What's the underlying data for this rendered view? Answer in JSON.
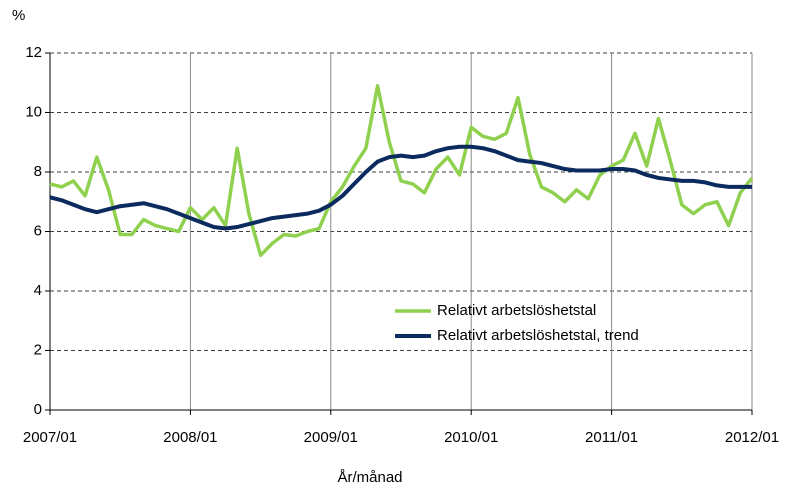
{
  "chart_data": {
    "type": "line",
    "y_unit_label": "%",
    "x_label": "År/månad",
    "categories": [
      "2007/01",
      null,
      null,
      null,
      null,
      null,
      null,
      null,
      null,
      null,
      null,
      null,
      "2008/01",
      null,
      null,
      null,
      null,
      null,
      null,
      null,
      null,
      null,
      null,
      null,
      "2009/01",
      null,
      null,
      null,
      null,
      null,
      null,
      null,
      null,
      null,
      null,
      null,
      "2010/01",
      null,
      null,
      null,
      null,
      null,
      null,
      null,
      null,
      null,
      null,
      null,
      "2011/01",
      null,
      null,
      null,
      null,
      null,
      null,
      null,
      null,
      null,
      null,
      null,
      "2012/01"
    ],
    "series": [
      {
        "name": "Relativt arbetslöshetstal",
        "color": "#8fd14f",
        "width": 3.5,
        "values": [
          7.6,
          7.5,
          7.7,
          7.2,
          8.5,
          7.4,
          5.9,
          5.9,
          6.4,
          6.2,
          6.1,
          6.0,
          6.8,
          6.4,
          6.8,
          6.2,
          8.8,
          6.6,
          5.2,
          5.6,
          5.9,
          5.85,
          6.0,
          6.1,
          7.0,
          7.5,
          8.2,
          8.8,
          10.9,
          9.0,
          7.7,
          7.6,
          7.3,
          8.1,
          8.5,
          7.9,
          9.5,
          9.2,
          9.1,
          9.3,
          10.5,
          8.6,
          7.5,
          7.3,
          7.0,
          7.4,
          7.1,
          7.9,
          8.2,
          8.4,
          9.3,
          8.2,
          9.8,
          8.4,
          6.9,
          6.6,
          6.9,
          7.0,
          6.2,
          7.3,
          7.8
        ]
      },
      {
        "name": "Relativt arbetslöshetstal, trend",
        "color": "#0b2a5e",
        "width": 4,
        "values": [
          7.15,
          7.05,
          6.9,
          6.75,
          6.65,
          6.75,
          6.85,
          6.9,
          6.95,
          6.85,
          6.75,
          6.6,
          6.45,
          6.3,
          6.15,
          6.1,
          6.15,
          6.25,
          6.35,
          6.45,
          6.5,
          6.55,
          6.6,
          6.7,
          6.9,
          7.2,
          7.6,
          8.0,
          8.35,
          8.5,
          8.55,
          8.5,
          8.55,
          8.7,
          8.8,
          8.85,
          8.85,
          8.8,
          8.7,
          8.55,
          8.4,
          8.35,
          8.3,
          8.2,
          8.1,
          8.05,
          8.05,
          8.05,
          8.1,
          8.1,
          8.05,
          7.9,
          7.8,
          7.75,
          7.7,
          7.7,
          7.65,
          7.55,
          7.5,
          7.5,
          7.5
        ]
      }
    ],
    "ylim": [
      0,
      12
    ],
    "yticks": [
      0,
      2,
      4,
      6,
      8,
      10,
      12
    ],
    "grid": true,
    "legend": "lower right"
  }
}
